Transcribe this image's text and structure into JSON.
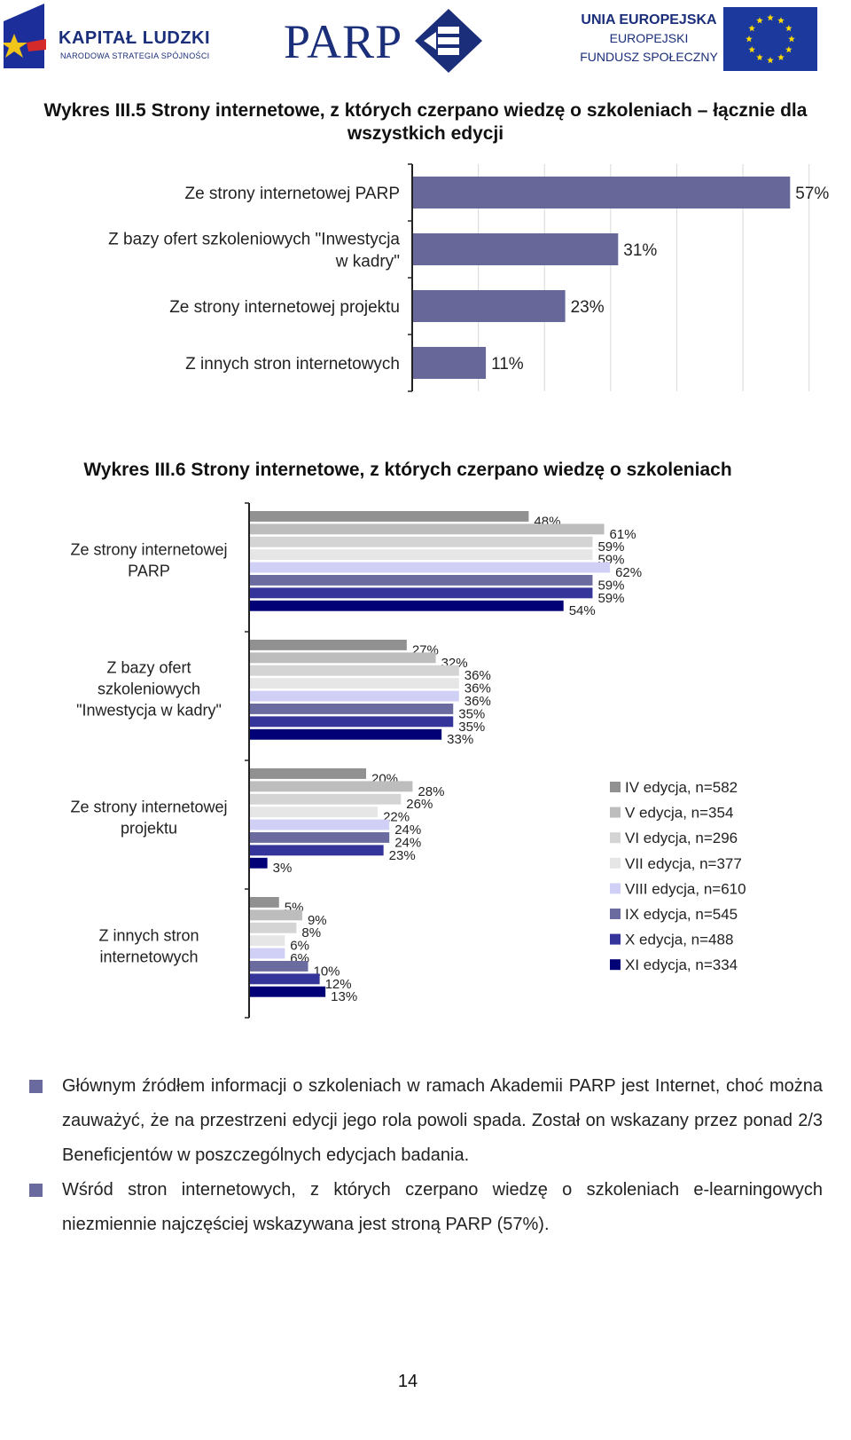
{
  "header": {
    "logo_left_title": "KAPITAŁ LUDZKI",
    "logo_left_subtitle": "NARODOWA STRATEGIA SPÓJNOŚCI",
    "logo_center": "PARP",
    "logo_right_line1": "UNIA EUROPEJSKA",
    "logo_right_line2": "EUROPEJSKI",
    "logo_right_line3": "FUNDUSZ SPOŁECZNY"
  },
  "chart_data": [
    {
      "type": "bar",
      "orientation": "horizontal",
      "title": "Wykres III.5 Strony internetowe, z których czerpano wiedzę o szkoleniach – łącznie dla wszystkich edycji",
      "categories": [
        "Ze strony internetowej PARP",
        "Z bazy ofert szkoleniowych \"Inwestycja w kadry\"",
        "Ze strony internetowej projektu",
        "Z innych stron internetowych"
      ],
      "category_lines": [
        [
          "Ze strony internetowej PARP"
        ],
        [
          "Z bazy ofert szkoleniowych \"Inwestycja",
          "w kadry\""
        ],
        [
          "Ze strony internetowej projektu"
        ],
        [
          "Z innych stron internetowych"
        ]
      ],
      "values": [
        57,
        31,
        23,
        11
      ],
      "value_labels": [
        "57%",
        "31%",
        "23%",
        "11%"
      ],
      "unit": "%",
      "xlim": [
        0,
        65
      ],
      "grid": "vertical",
      "bar_color": "#68679a"
    },
    {
      "type": "bar",
      "orientation": "horizontal",
      "title": "Wykres III.6 Strony internetowe, z których czerpano wiedzę o szkoleniach",
      "categories": [
        "Ze strony internetowej PARP",
        "Z bazy ofert szkoleniowych \"Inwestycja w kadry\"",
        "Ze strony internetowej projektu",
        "Z innych stron internetowych"
      ],
      "category_lines": [
        [
          "Ze strony internetowej",
          "PARP"
        ],
        [
          "Z bazy ofert",
          "szkoleniowych",
          "\"Inwestycja w kadry\""
        ],
        [
          "Ze strony internetowej",
          "projektu"
        ],
        [
          "Z innych stron",
          "internetowych"
        ]
      ],
      "unit": "%",
      "xlim": [
        0,
        100
      ],
      "legend_position": "right",
      "series": [
        {
          "name": "IV edycja, n=582",
          "color": "#919191",
          "values": [
            48,
            27,
            20,
            5
          ]
        },
        {
          "name": "V edycja, n=354",
          "color": "#bdbdbd",
          "values": [
            61,
            32,
            28,
            9
          ]
        },
        {
          "name": "VI edycja, n=296",
          "color": "#d4d4d4",
          "values": [
            59,
            36,
            26,
            8
          ]
        },
        {
          "name": "VII edycja, n=377",
          "color": "#e6e6e6",
          "values": [
            59,
            36,
            22,
            6
          ]
        },
        {
          "name": "VIII edycja, n=610",
          "color": "#d0d0f6",
          "values": [
            62,
            36,
            24,
            6
          ]
        },
        {
          "name": "IX edycja, n=545",
          "color": "#6b6b9f",
          "values": [
            59,
            35,
            24,
            10
          ]
        },
        {
          "name": "X edycja, n=488",
          "color": "#34349a",
          "values": [
            59,
            35,
            23,
            12
          ]
        },
        {
          "name": "XI edycja, n=334",
          "color": "#020276",
          "values": [
            54,
            33,
            3,
            13
          ]
        }
      ]
    }
  ],
  "paragraphs": [
    "Głównym źródłem informacji o szkoleniach w ramach Akademii PARP jest Internet, choć można zauważyć, że na przestrzeni edycji jego rola powoli spada. Został on wskazany przez ponad 2/3 Beneficjentów w poszczególnych edycjach badania.",
    "Wśród stron internetowych, z których czerpano wiedzę o szkoleniach e-learningowych niezmiennie najczęściej wskazywana jest stroną PARP (57%)."
  ],
  "page_number": "14"
}
